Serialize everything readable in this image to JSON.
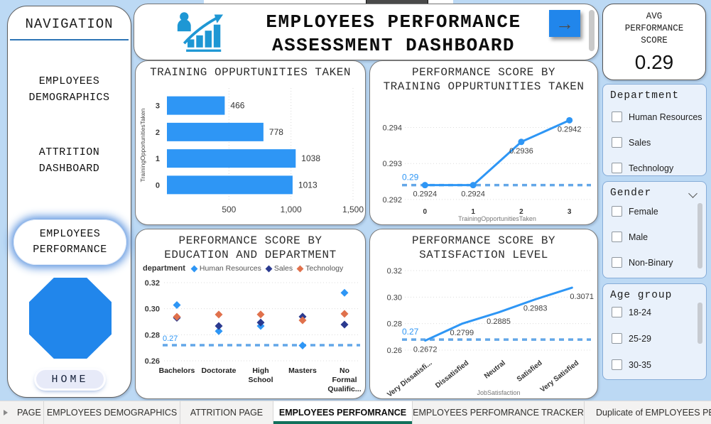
{
  "navigation": {
    "title": "NAVIGATION",
    "items": [
      {
        "line1": "EMPLOYEES",
        "line2": "DEMOGRAPHICS",
        "active": false
      },
      {
        "line1": "ATTRITION",
        "line2": "DASHBOARD",
        "active": false
      },
      {
        "line1": "EMPLOYEES",
        "line2": "PERFORMANCE",
        "active": true
      }
    ],
    "home_label": "HOME"
  },
  "header": {
    "title_line1": "EMPLOYEES PERFORMANCE",
    "title_line2": "ASSESSMENT DASHBOARD"
  },
  "icons": {
    "right_arrow_glyph": "→",
    "header_icon": "person-growth-chart-icon",
    "duplicate_tab_icon": "hidden-page-eye-off-icon",
    "gender_header_icon": "chevron-down-icon"
  },
  "kpi": {
    "label_lines": [
      "AVG",
      "PERFORMANCE",
      "SCORE"
    ],
    "value": "0.29"
  },
  "filters": [
    {
      "title": "Department",
      "options": [
        "Human Resources",
        "Sales",
        "Technology"
      ]
    },
    {
      "title": "Gender",
      "options": [
        "Female",
        "Male",
        "Non-Binary"
      ]
    },
    {
      "title": "Age group",
      "options": [
        "18-24",
        "25-29",
        "30-35"
      ]
    }
  ],
  "tabs": {
    "items": [
      {
        "label": "PAGE",
        "active": false
      },
      {
        "label": "EMPLOYEES DEMOGRAPHICS",
        "active": false
      },
      {
        "label": "ATTRITION PAGE",
        "active": false
      },
      {
        "label": "EMPLOYEES PERFOMRANCE",
        "active": true
      },
      {
        "label": "EMPLOYEES PERFOMRANCE TRACKER",
        "active": false
      },
      {
        "label": "Duplicate of EMPLOYEES PER",
        "active": false,
        "hidden_icon": true
      }
    ]
  },
  "chart_data": [
    {
      "type": "bar",
      "title": "TRAINING OPPURTUNITIES TAKEN",
      "y_axis_title": "TrainingOpportunitiesTaken",
      "categories": [
        "3",
        "2",
        "1",
        "0"
      ],
      "values": [
        466,
        778,
        1038,
        1013
      ],
      "xlim": [
        0,
        1500
      ],
      "xticks": [
        {
          "value": 500,
          "label": "500"
        },
        {
          "value": 1000,
          "label": "1,000"
        },
        {
          "value": 1500,
          "label": "1,500"
        }
      ],
      "bar_color": "#2E96F5"
    },
    {
      "type": "line",
      "title_line1": "PERFORMANCE SCORE BY",
      "title_line2": "TRAINING OPPURTUNITIES TAKEN",
      "x_categories": [
        "0",
        "1",
        "2",
        "3"
      ],
      "values": [
        0.2924,
        0.2924,
        0.2936,
        0.2942
      ],
      "point_labels": [
        "0.2924",
        "0.2924",
        "0.2936",
        "0.2942"
      ],
      "ylim": [
        0.2919,
        0.2947
      ],
      "yticks": [
        {
          "value": 0.292,
          "label": "0.292"
        },
        {
          "value": 0.293,
          "label": "0.293"
        },
        {
          "value": 0.294,
          "label": "0.294"
        }
      ],
      "x_axis_title": "TrainingOpportunitiesTaken",
      "ref_line": {
        "value": 0.2924,
        "label": "0.29"
      },
      "line_color": "#2E96F5",
      "markers": true,
      "rotate_x_labels": false
    },
    {
      "type": "scatter",
      "title_line1": "PERFORMANCE SCORE BY",
      "title_line2": "EDUCATION AND DEPARTMENT",
      "legend_title": "department",
      "categories": [
        [
          "Bachelors"
        ],
        [
          "Doctorate"
        ],
        [
          "High",
          "School"
        ],
        [
          "Masters"
        ],
        [
          "No",
          "Formal",
          "Qualific..."
        ]
      ],
      "series": [
        {
          "name": "Human Resources",
          "color": "#2E96F5",
          "values": [
            0.3028,
            0.2828,
            0.2867,
            0.2717,
            0.3122
          ]
        },
        {
          "name": "Sales",
          "color": "#2B3A8F",
          "values": [
            0.293,
            0.2867,
            0.2894,
            0.2939,
            0.2878
          ]
        },
        {
          "name": "Technology",
          "color": "#E0714C",
          "values": [
            0.2938,
            0.2955,
            0.2956,
            0.2911,
            0.2961
          ]
        }
      ],
      "ylim": [
        0.26,
        0.32
      ],
      "yticks": [
        {
          "value": 0.26,
          "label": "0.26"
        },
        {
          "value": 0.28,
          "label": "0.28"
        },
        {
          "value": 0.3,
          "label": "0.30"
        },
        {
          "value": 0.32,
          "label": "0.32"
        }
      ],
      "ref_line": {
        "value": 0.272,
        "label": "0.27"
      }
    },
    {
      "type": "line",
      "title_line1": "PERFORMANCE SCORE BY",
      "title_line2": "SATISFACTION LEVEL",
      "x_categories": [
        "Very Dissatisfi...",
        "Dissatisfied",
        "Neutral",
        "Satisfied",
        "Very Satisfied"
      ],
      "values": [
        0.2672,
        0.2799,
        0.2885,
        0.2983,
        0.3071
      ],
      "point_labels": [
        "0.2672",
        "0.2799",
        "0.2885",
        "0.2983",
        "0.3071"
      ],
      "ylim": [
        0.26,
        0.32
      ],
      "yticks": [
        {
          "value": 0.26,
          "label": "0.26"
        },
        {
          "value": 0.28,
          "label": "0.28"
        },
        {
          "value": 0.3,
          "label": "0.30"
        },
        {
          "value": 0.32,
          "label": "0.32"
        }
      ],
      "x_axis_title": "JobSatisfaction",
      "ref_line": {
        "value": 0.268,
        "label": "0.27"
      },
      "line_color": "#2E96F5",
      "markers": false,
      "rotate_x_labels": true
    }
  ],
  "colors": {
    "accent_blue": "#2E96F5",
    "shape_blue": "#2186EB",
    "dashed_ref": "#63A7E8",
    "sales_navy": "#2B3A8F",
    "technology_orange": "#E0714C",
    "active_tab_underline": "#11705B",
    "page_background": "#BCD9F4"
  }
}
